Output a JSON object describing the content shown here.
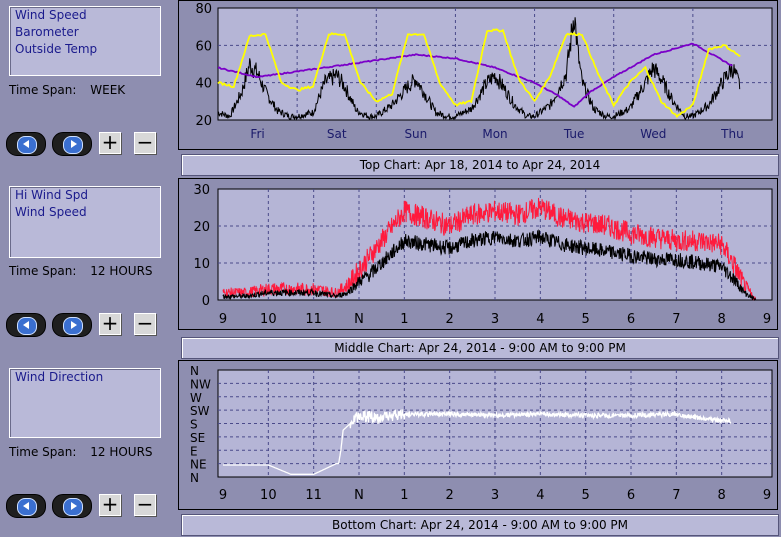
{
  "panels": [
    {
      "legend": [
        "Wind Speed",
        "Barometer",
        "Outside Temp"
      ],
      "span_label": "Time Span:",
      "span_value": "WEEK",
      "caption": "Top Chart:  Apr 18, 2014  to  Apr 24, 2014"
    },
    {
      "legend": [
        "Hi Wind Spd",
        "Wind Speed"
      ],
      "span_label": "Time Span:",
      "span_value": "12 HOURS",
      "caption": "Middle Chart:  Apr 24, 2014 - 9:00 AM  to  9:00 PM"
    },
    {
      "legend": [
        "Wind Direction"
      ],
      "span_label": "Time Span:",
      "span_value": "12 HOURS",
      "caption": "Bottom Chart:  Apr 24, 2014 - 9:00 AM  to  9:00 PM"
    }
  ],
  "buttons": {
    "plus": "+",
    "minus": "−"
  },
  "colors": {
    "bg": "#8e8eb0",
    "plot_bg": "#b5b5d6",
    "grid": "#4a4a8a",
    "black": "#000000",
    "yellow": "#ffff00",
    "purple": "#7a00c8",
    "red": "#ff1a3c",
    "white": "#ffffff"
  },
  "chart_data": [
    {
      "type": "line",
      "x_tick_labels": [
        "Fri",
        "Sat",
        "Sun",
        "Mon",
        "Tue",
        "Wed",
        "Thu"
      ],
      "y_tick_labels": [
        "80",
        "60",
        "40",
        "20"
      ],
      "ylim": [
        20,
        80
      ],
      "grid": true,
      "series": [
        {
          "name": "Wind Speed",
          "color": "#000000",
          "x_days": [
            0,
            0.15,
            0.3,
            0.4,
            0.5,
            0.6,
            0.75,
            0.9,
            1.0,
            1.2,
            1.35,
            1.5,
            1.6,
            1.75,
            1.9,
            2.0,
            2.2,
            2.4,
            2.5,
            2.6,
            2.75,
            2.9,
            3.0,
            3.2,
            3.4,
            3.5,
            3.6,
            3.75,
            3.9,
            4.0,
            4.2,
            4.4,
            4.45,
            4.5,
            4.55,
            4.6,
            4.75,
            4.9,
            5.0,
            5.2,
            5.4,
            5.5,
            5.6,
            5.75,
            5.9,
            6.0,
            6.2,
            6.4,
            6.5,
            6.6
          ],
          "y": [
            24,
            22,
            35,
            50,
            45,
            35,
            25,
            22,
            22,
            24,
            40,
            44,
            38,
            25,
            22,
            22,
            28,
            38,
            42,
            35,
            24,
            22,
            22,
            26,
            40,
            44,
            38,
            28,
            22,
            22,
            28,
            45,
            60,
            78,
            55,
            40,
            26,
            22,
            22,
            26,
            40,
            48,
            42,
            30,
            22,
            22,
            28,
            42,
            48,
            38
          ]
        },
        {
          "name": "Barometer",
          "color": "#7a00c8",
          "x_days": [
            0,
            0.5,
            1.0,
            1.5,
            2.0,
            2.5,
            3.0,
            3.5,
            4.0,
            4.3,
            4.5,
            4.7,
            5.0,
            5.5,
            6.0,
            6.5
          ],
          "y": [
            48,
            43,
            46,
            49,
            52,
            55,
            53,
            48,
            40,
            33,
            27,
            35,
            43,
            55,
            61,
            49
          ]
        },
        {
          "name": "Outside Temp",
          "color": "#ffff00",
          "x_days": [
            0,
            0.2,
            0.4,
            0.6,
            0.8,
            1.0,
            1.2,
            1.4,
            1.6,
            1.8,
            2.0,
            2.2,
            2.4,
            2.6,
            2.8,
            3.0,
            3.2,
            3.4,
            3.6,
            3.8,
            4.0,
            4.2,
            4.4,
            4.6,
            4.8,
            5.0,
            5.2,
            5.4,
            5.6,
            5.8,
            6.0,
            6.2,
            6.4,
            6.6
          ],
          "y": [
            40,
            38,
            65,
            66,
            40,
            36,
            38,
            66,
            66,
            40,
            30,
            34,
            66,
            66,
            40,
            28,
            30,
            68,
            68,
            42,
            30,
            44,
            66,
            66,
            45,
            28,
            40,
            48,
            30,
            22,
            28,
            58,
            60,
            54
          ]
        }
      ]
    },
    {
      "type": "line",
      "x_tick_labels": [
        "9",
        "10",
        "11",
        "N",
        "1",
        "2",
        "3",
        "4",
        "5",
        "6",
        "7",
        "8",
        "9"
      ],
      "y_tick_labels": [
        "30",
        "20",
        "10",
        "0"
      ],
      "ylim": [
        0,
        30
      ],
      "grid": true,
      "series": [
        {
          "name": "Hi Wind Spd",
          "color": "#ff1a3c",
          "x_hours": [
            0,
            0.5,
            1.0,
            1.5,
            2.0,
            2.5,
            2.75,
            3.0,
            3.25,
            3.5,
            3.75,
            4.0,
            4.5,
            5.0,
            5.5,
            6.0,
            6.5,
            7.0,
            7.5,
            8.0,
            8.5,
            9.0,
            9.5,
            10.0,
            10.5,
            11.0,
            11.25,
            11.5,
            11.75
          ],
          "y": [
            2,
            2,
            3,
            3,
            3,
            2,
            4,
            8,
            12,
            16,
            20,
            24,
            22,
            20,
            23,
            24,
            23,
            25,
            22,
            21,
            20,
            18,
            17,
            16,
            16,
            15,
            10,
            4,
            0
          ]
        },
        {
          "name": "Wind Speed",
          "color": "#000000",
          "x_hours": [
            0,
            0.5,
            1.0,
            1.5,
            2.0,
            2.5,
            2.75,
            3.0,
            3.25,
            3.5,
            3.75,
            4.0,
            4.5,
            5.0,
            5.5,
            6.0,
            6.5,
            7.0,
            7.5,
            8.0,
            8.5,
            9.0,
            9.5,
            10.0,
            10.5,
            11.0,
            11.25,
            11.5,
            11.75
          ],
          "y": [
            1,
            1,
            2,
            2,
            2,
            1,
            2,
            5,
            7,
            10,
            13,
            16,
            15,
            14,
            16,
            17,
            16,
            17,
            15,
            14,
            13,
            12,
            11,
            11,
            10,
            9,
            6,
            2,
            0
          ]
        }
      ]
    },
    {
      "type": "line",
      "x_tick_labels": [
        "9",
        "10",
        "11",
        "N",
        "1",
        "2",
        "3",
        "4",
        "5",
        "6",
        "7",
        "8",
        "9"
      ],
      "y_tick_labels": [
        "N",
        "NW",
        "W",
        "SW",
        "S",
        "SE",
        "E",
        "NE",
        "N"
      ],
      "grid": true,
      "series": [
        {
          "name": "Wind Direction",
          "color": "#ffffff",
          "x_hours": [
            0,
            1.0,
            1.5,
            2.0,
            2.5,
            2.55,
            2.6,
            2.65,
            3.0,
            3.5,
            4.0,
            5.0,
            6.0,
            7.0,
            8.0,
            9.0,
            10.0,
            10.5,
            11.0,
            11.2
          ],
          "y_compass_index": [
            7.1,
            7.1,
            7.8,
            7.8,
            7.0,
            7.0,
            6.0,
            4.5,
            3.4,
            3.6,
            3.3,
            3.3,
            3.4,
            3.3,
            3.4,
            3.4,
            3.3,
            3.6,
            3.8,
            3.8
          ]
        }
      ]
    }
  ]
}
